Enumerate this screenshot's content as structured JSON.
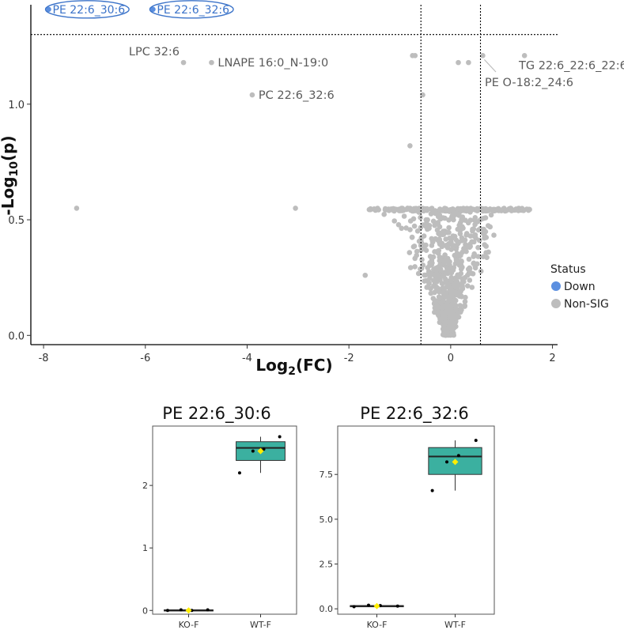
{
  "chart_data": [
    {
      "type": "scatter",
      "xlabel": "Log",
      "xlabel_sub": "2",
      "xlabel_tail": "(FC)",
      "ylabel": "-Log",
      "ylabel_sub": "10",
      "ylabel_tail": "(p)",
      "xlim": [
        -8.25,
        2.1
      ],
      "ylim": [
        -0.04,
        1.43
      ],
      "x_ticks": [
        -8,
        -6,
        -4,
        -2,
        0,
        2
      ],
      "y_ticks": [
        0.0,
        0.5,
        1.0
      ],
      "y_tick_labels": [
        "0.0",
        "0.5",
        "1.0"
      ],
      "fc_threshold": [
        -0.585,
        0.585
      ],
      "p_threshold": 1.301,
      "grid": false,
      "legend": {
        "title": "Status",
        "position": "right",
        "entries": [
          {
            "label": "Down",
            "color": "#5b8fe0"
          },
          {
            "label": "Non-SIG",
            "color": "#bdbdbd"
          }
        ]
      },
      "colors": {
        "down": "#5b8fe0",
        "nonsig": "#bdbdbd",
        "label_sig": "#3b73c9"
      },
      "significant_points": [
        {
          "x": -7.9,
          "y": 1.41,
          "label": "PE 22:6_30:6",
          "status": "Down"
        },
        {
          "x": -5.85,
          "y": 1.41,
          "label": "PE 22:6_32:6",
          "status": "Down"
        }
      ],
      "labeled_points": [
        {
          "x": -5.25,
          "y": 1.18,
          "label": "LPC 32:6"
        },
        {
          "x": -4.7,
          "y": 1.18,
          "label": "LNAPE 16:0_N-19:0"
        },
        {
          "x": -3.9,
          "y": 1.04,
          "label": "PC 22:6_32:6"
        },
        {
          "x": 1.45,
          "y": 1.21,
          "label": "TG 22:6_22:6_22:6"
        },
        {
          "x": 0.63,
          "y": 1.21,
          "label": "PE O-18:2_24:6"
        }
      ],
      "other_points": [
        {
          "x": -7.35,
          "y": 0.55
        },
        {
          "x": -3.05,
          "y": 0.55
        },
        {
          "x": -1.68,
          "y": 0.26
        },
        {
          "x": -0.75,
          "y": 1.21
        },
        {
          "x": -0.7,
          "y": 1.21
        },
        {
          "x": -0.55,
          "y": 1.04
        },
        {
          "x": -0.8,
          "y": 0.82
        },
        {
          "x": 0.15,
          "y": 1.18
        },
        {
          "x": 0.35,
          "y": 1.18
        }
      ],
      "cloud": {
        "x_min": -1.6,
        "x_max": 1.6,
        "y_top": 0.55,
        "count": 900
      }
    },
    {
      "type": "box",
      "title": "PE 22:6_30:6",
      "categories": [
        "KO-F",
        "WT-F"
      ],
      "ylim": [
        -0.06,
        2.95
      ],
      "y_ticks": [
        0,
        1,
        2
      ],
      "y_tick_labels": [
        "0",
        "1",
        "2"
      ],
      "colors": {
        "box": "#3bb0a0",
        "mean": "#ffee00"
      },
      "boxes": [
        {
          "category": "KO-F",
          "min": 0.0,
          "q1": 0.0,
          "median": 0.0,
          "q3": 0.01,
          "max": 0.02,
          "mean": 0.0,
          "points": [
            0.0,
            0.01,
            0.0,
            0.01
          ]
        },
        {
          "category": "WT-F",
          "min": 2.2,
          "q1": 2.4,
          "median": 2.6,
          "q3": 2.7,
          "max": 2.78,
          "mean": 2.55,
          "points": [
            2.2,
            2.78,
            2.58,
            2.55
          ]
        }
      ]
    },
    {
      "type": "box",
      "title": "PE 22:6_32:6",
      "categories": [
        "KO-F",
        "WT-F"
      ],
      "ylim": [
        -0.3,
        10.2
      ],
      "y_ticks": [
        0.0,
        2.5,
        5.0,
        7.5
      ],
      "y_tick_labels": [
        "0.0",
        "2.5",
        "5.0",
        "7.5"
      ],
      "colors": {
        "box": "#3bb0a0",
        "mean": "#ffee00"
      },
      "boxes": [
        {
          "category": "KO-F",
          "min": 0.12,
          "q1": 0.13,
          "median": 0.15,
          "q3": 0.18,
          "max": 0.2,
          "mean": 0.15,
          "points": [
            0.12,
            0.15,
            0.18,
            0.2
          ]
        },
        {
          "category": "WT-F",
          "min": 6.6,
          "q1": 7.5,
          "median": 8.5,
          "q3": 9.0,
          "max": 9.4,
          "mean": 8.2,
          "points": [
            6.6,
            9.4,
            8.55,
            8.2
          ]
        }
      ]
    }
  ]
}
